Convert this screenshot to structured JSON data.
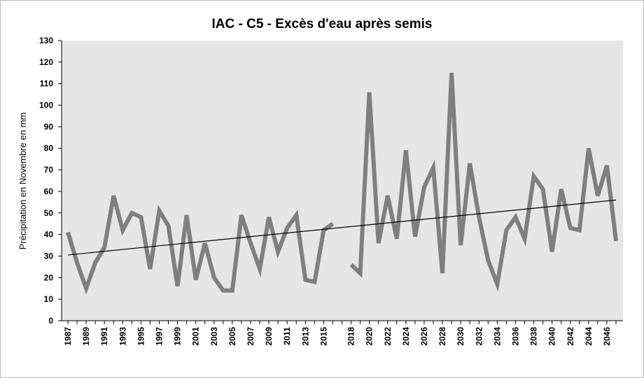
{
  "chart_data": {
    "type": "line",
    "title": "IAC - C5 - Excès d'eau après semis",
    "xlabel": "",
    "ylabel": "Précipitation en Novembre en mm",
    "ylim": [
      0,
      130
    ],
    "yticks": [
      0,
      10,
      20,
      30,
      40,
      50,
      60,
      70,
      80,
      90,
      100,
      110,
      120,
      130
    ],
    "xlim": [
      1987,
      2046
    ],
    "x_tick_labels": [
      "1987",
      "1989",
      "1991",
      "1993",
      "1995",
      "1997",
      "1999",
      "2001",
      "2003",
      "2005",
      "2007",
      "2009",
      "2011",
      "2013",
      "2015",
      "2018",
      "2020",
      "2022",
      "2024",
      "2026",
      "2028",
      "2030",
      "2032",
      "2034",
      "2036",
      "2038",
      "2040",
      "2042",
      "2044",
      "2046"
    ],
    "grid": false,
    "legend": "none",
    "colors": {
      "series": "#7f7f7f",
      "trend": "#000000",
      "plot_bg": "#e6e6e6"
    },
    "series": [
      {
        "values": [
          [
            1987,
            41
          ],
          [
            1988,
            27
          ],
          [
            1989,
            15
          ],
          [
            1990,
            27
          ],
          [
            1991,
            34
          ],
          [
            1992,
            58
          ],
          [
            1993,
            42
          ],
          [
            1994,
            50
          ],
          [
            1995,
            48
          ],
          [
            1996,
            24
          ],
          [
            1997,
            51
          ],
          [
            1998,
            44
          ],
          [
            1999,
            16
          ],
          [
            2000,
            49
          ],
          [
            2001,
            19
          ],
          [
            2002,
            36
          ],
          [
            2003,
            20
          ],
          [
            2004,
            14
          ],
          [
            2005,
            14
          ],
          [
            2006,
            49
          ],
          [
            2007,
            36
          ],
          [
            2008,
            24
          ],
          [
            2009,
            48
          ],
          [
            2010,
            32
          ],
          [
            2011,
            43
          ],
          [
            2012,
            49
          ],
          [
            2013,
            19
          ],
          [
            2014,
            18
          ],
          [
            2015,
            42
          ],
          [
            2016,
            45
          ],
          [
            2017,
            null
          ],
          [
            2018,
            26
          ],
          [
            2019,
            22
          ],
          [
            2020,
            106
          ],
          [
            2021,
            36
          ],
          [
            2022,
            58
          ],
          [
            2023,
            38
          ],
          [
            2024,
            79
          ],
          [
            2025,
            39
          ],
          [
            2026,
            62
          ],
          [
            2027,
            71
          ],
          [
            2028,
            22
          ],
          [
            2029,
            115
          ],
          [
            2030,
            35
          ],
          [
            2031,
            73
          ],
          [
            2032,
            48
          ],
          [
            2033,
            28
          ],
          [
            2034,
            17
          ],
          [
            2035,
            42
          ],
          [
            2036,
            48
          ],
          [
            2037,
            38
          ],
          [
            2038,
            67
          ],
          [
            2039,
            61
          ],
          [
            2040,
            32
          ],
          [
            2041,
            61
          ],
          [
            2042,
            43
          ],
          [
            2043,
            42
          ],
          [
            2044,
            80
          ],
          [
            2045,
            58
          ],
          [
            2046,
            72
          ],
          [
            2047,
            37
          ]
        ]
      }
    ],
    "trendline": {
      "type": "linear",
      "x": [
        1987,
        2047
      ],
      "y": [
        30.5,
        56
      ]
    }
  }
}
